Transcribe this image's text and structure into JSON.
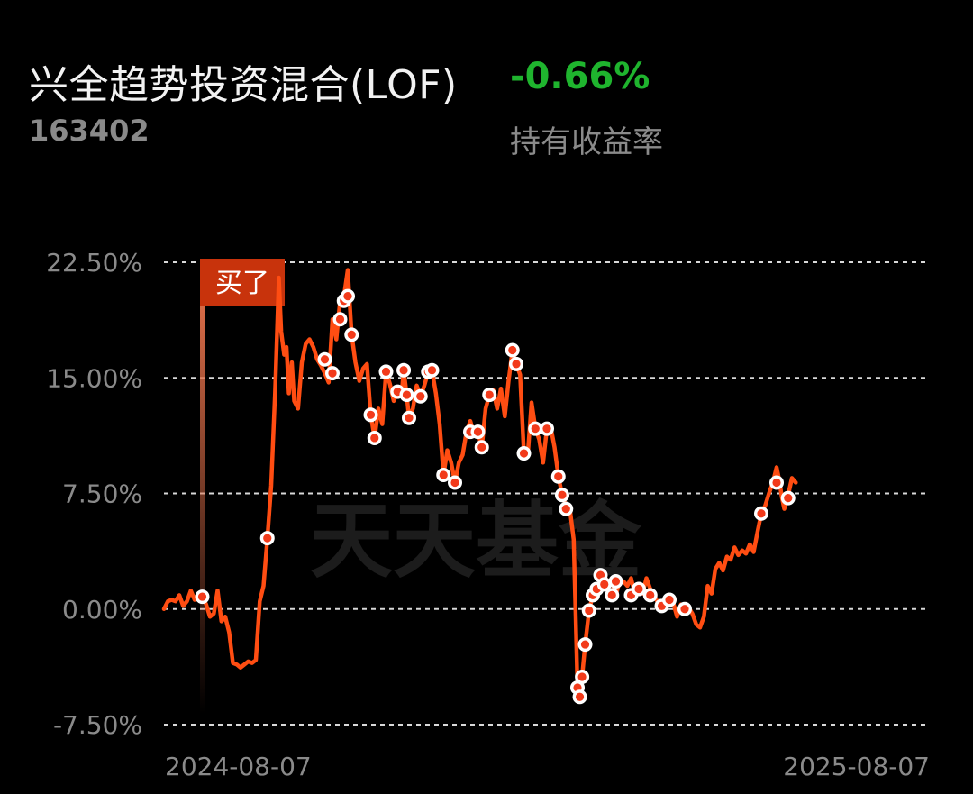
{
  "header": {
    "fund_name": "兴全趋势投资混合(LOF)",
    "fund_code": "163402",
    "return_value": "-0.66%",
    "return_label": "持有收益率"
  },
  "badge": {
    "label": "买了"
  },
  "watermark": "天天基金",
  "colors": {
    "line": "#ff4d12",
    "positive": "#1fb42e",
    "badge": "#c8330c",
    "text_muted": "#8a8a8a"
  },
  "chart_data": {
    "type": "line",
    "ylim": [
      -7.5,
      22.5
    ],
    "yticks": [
      22.5,
      15.0,
      7.5,
      0.0,
      -7.5
    ],
    "ytick_labels": [
      "22.50%",
      "15.00%",
      "7.50%",
      "0.00%",
      "-7.50%"
    ],
    "x_start_label": "2024-08-07",
    "x_end_label": "2025-08-07",
    "x_range": [
      0,
      100
    ],
    "grid": true,
    "buy_marker_x": 5.0,
    "series": [
      {
        "values": [
          [
            0.0,
            0.0
          ],
          [
            0.5,
            0.5
          ],
          [
            1.0,
            0.6
          ],
          [
            1.5,
            0.5
          ],
          [
            2.0,
            0.9
          ],
          [
            2.5,
            0.2
          ],
          [
            3.0,
            0.5
          ],
          [
            3.5,
            1.2
          ],
          [
            4.0,
            0.6
          ],
          [
            4.5,
            1.0
          ],
          [
            5.0,
            0.8
          ],
          [
            5.5,
            0.3
          ],
          [
            6.0,
            -0.5
          ],
          [
            6.5,
            -0.3
          ],
          [
            7.0,
            1.2
          ],
          [
            7.5,
            -0.8
          ],
          [
            8.0,
            -0.5
          ],
          [
            8.5,
            -1.5
          ],
          [
            9.0,
            -3.5
          ],
          [
            9.5,
            -3.6
          ],
          [
            10.0,
            -3.8
          ],
          [
            10.5,
            -3.6
          ],
          [
            11.0,
            -3.4
          ],
          [
            11.5,
            -3.5
          ],
          [
            12.0,
            -3.3
          ],
          [
            12.5,
            0.5
          ],
          [
            13.0,
            1.5
          ],
          [
            13.5,
            4.6
          ],
          [
            14.0,
            8.0
          ],
          [
            14.5,
            14.0
          ],
          [
            15.0,
            21.5
          ],
          [
            15.3,
            18.0
          ],
          [
            15.7,
            16.5
          ],
          [
            16.0,
            17.0
          ],
          [
            16.3,
            14.0
          ],
          [
            16.7,
            16.0
          ],
          [
            17.0,
            13.5
          ],
          [
            17.5,
            13.0
          ],
          [
            18.0,
            16.0
          ],
          [
            18.5,
            17.2
          ],
          [
            19.0,
            17.5
          ],
          [
            19.5,
            17.0
          ],
          [
            20.0,
            16.2
          ],
          [
            20.5,
            15.8
          ],
          [
            21.0,
            15.3
          ],
          [
            21.5,
            14.7
          ],
          [
            22.0,
            18.8
          ],
          [
            22.5,
            17.5
          ],
          [
            23.0,
            20.0
          ],
          [
            23.5,
            20.3
          ],
          [
            24.0,
            22.0
          ],
          [
            24.5,
            17.8
          ],
          [
            25.0,
            16.0
          ],
          [
            25.5,
            14.8
          ],
          [
            26.0,
            15.6
          ],
          [
            26.5,
            15.9
          ],
          [
            27.0,
            12.6
          ],
          [
            27.5,
            11.1
          ],
          [
            28.0,
            13.0
          ],
          [
            28.5,
            12.0
          ],
          [
            29.0,
            15.4
          ],
          [
            29.5,
            14.6
          ],
          [
            30.0,
            13.5
          ],
          [
            30.5,
            14.1
          ],
          [
            31.0,
            13.8
          ],
          [
            31.3,
            15.5
          ],
          [
            31.7,
            13.9
          ],
          [
            32.0,
            12.4
          ],
          [
            32.5,
            13.0
          ],
          [
            33.0,
            14.5
          ],
          [
            33.5,
            13.8
          ],
          [
            34.0,
            14.5
          ],
          [
            34.5,
            15.4
          ],
          [
            35.0,
            15.5
          ],
          [
            35.5,
            14.0
          ],
          [
            36.0,
            12.0
          ],
          [
            36.5,
            8.7
          ],
          [
            37.0,
            10.3
          ],
          [
            37.5,
            9.5
          ],
          [
            38.0,
            8.2
          ],
          [
            38.5,
            9.5
          ],
          [
            39.0,
            10.0
          ],
          [
            39.5,
            11.5
          ],
          [
            40.0,
            12.2
          ],
          [
            40.5,
            11.3
          ],
          [
            41.0,
            11.5
          ],
          [
            41.5,
            10.5
          ],
          [
            42.0,
            13.0
          ],
          [
            42.5,
            13.9
          ],
          [
            43.0,
            14.2
          ],
          [
            43.5,
            13.0
          ],
          [
            44.0,
            14.3
          ],
          [
            44.5,
            12.5
          ],
          [
            45.0,
            14.8
          ],
          [
            45.5,
            16.8
          ],
          [
            46.0,
            15.9
          ],
          [
            46.5,
            15.2
          ],
          [
            47.0,
            10.1
          ],
          [
            47.5,
            10.0
          ],
          [
            48.0,
            13.4
          ],
          [
            48.5,
            11.7
          ],
          [
            49.0,
            11.0
          ],
          [
            49.5,
            9.5
          ],
          [
            50.0,
            11.7
          ],
          [
            50.5,
            11.8
          ],
          [
            51.0,
            10.5
          ],
          [
            51.5,
            8.6
          ],
          [
            52.0,
            7.4
          ],
          [
            52.5,
            6.7
          ],
          [
            53.0,
            6.5
          ],
          [
            53.5,
            4.5
          ],
          [
            54.0,
            -5.1
          ],
          [
            54.3,
            -5.7
          ],
          [
            54.6,
            -4.4
          ],
          [
            55.0,
            -2.3
          ],
          [
            55.5,
            -0.1
          ],
          [
            56.0,
            0.9
          ],
          [
            56.5,
            1.3
          ],
          [
            57.0,
            1.4
          ],
          [
            57.5,
            2.2
          ],
          [
            58.0,
            1.6
          ],
          [
            58.5,
            1.7
          ],
          [
            59.0,
            0.9
          ],
          [
            59.5,
            1.8
          ],
          [
            60.0,
            1.8
          ],
          [
            60.5,
            1.5
          ],
          [
            61.0,
            2.0
          ],
          [
            61.5,
            0.9
          ],
          [
            62.0,
            1.3
          ],
          [
            62.5,
            1.0
          ],
          [
            63.0,
            2.0
          ],
          [
            63.5,
            1.3
          ],
          [
            64.0,
            0.9
          ],
          [
            64.5,
            0.4
          ],
          [
            65.0,
            0.0
          ],
          [
            65.5,
            0.2
          ],
          [
            66.0,
            0.6
          ],
          [
            66.5,
            0.4
          ],
          [
            67.0,
            -0.5
          ],
          [
            67.5,
            0.3
          ],
          [
            68.0,
            0.0
          ],
          [
            68.5,
            0.1
          ],
          [
            69.0,
            -0.3
          ],
          [
            69.5,
            -1.0
          ],
          [
            70.0,
            -1.2
          ],
          [
            70.5,
            -0.5
          ],
          [
            71.0,
            1.5
          ],
          [
            71.5,
            1.0
          ],
          [
            72.0,
            2.6
          ],
          [
            72.5,
            3.0
          ],
          [
            73.0,
            2.5
          ],
          [
            73.5,
            3.4
          ],
          [
            74.0,
            3.2
          ],
          [
            74.5,
            4.0
          ],
          [
            75.0,
            3.5
          ],
          [
            75.5,
            3.8
          ],
          [
            76.0,
            3.6
          ],
          [
            76.5,
            4.2
          ],
          [
            77.0,
            3.7
          ],
          [
            77.5,
            5.0
          ],
          [
            78.0,
            6.2
          ],
          [
            78.5,
            6.7
          ],
          [
            79.0,
            7.5
          ],
          [
            79.5,
            8.2
          ],
          [
            80.0,
            9.2
          ],
          [
            80.3,
            8.5
          ],
          [
            80.7,
            7.2
          ],
          [
            81.0,
            6.5
          ],
          [
            81.5,
            7.4
          ],
          [
            82.0,
            8.5
          ],
          [
            82.5,
            8.2
          ]
        ]
      }
    ],
    "trade_points": [
      [
        5.0,
        0.8
      ],
      [
        13.5,
        4.6
      ],
      [
        21.0,
        16.2
      ],
      [
        22.0,
        15.3
      ],
      [
        23.0,
        18.8
      ],
      [
        23.5,
        20.0
      ],
      [
        24.0,
        20.3
      ],
      [
        24.5,
        17.8
      ],
      [
        27.0,
        12.6
      ],
      [
        27.5,
        11.1
      ],
      [
        29.0,
        15.4
      ],
      [
        30.5,
        14.1
      ],
      [
        31.3,
        15.5
      ],
      [
        31.7,
        13.9
      ],
      [
        32.0,
        12.4
      ],
      [
        33.5,
        13.8
      ],
      [
        34.5,
        15.4
      ],
      [
        35.0,
        15.5
      ],
      [
        36.5,
        8.7
      ],
      [
        38.0,
        8.2
      ],
      [
        40.0,
        11.5
      ],
      [
        41.0,
        11.5
      ],
      [
        41.5,
        10.5
      ],
      [
        42.5,
        13.9
      ],
      [
        45.5,
        16.8
      ],
      [
        46.0,
        15.9
      ],
      [
        47.0,
        10.1
      ],
      [
        48.5,
        11.7
      ],
      [
        50.0,
        11.7
      ],
      [
        51.5,
        8.6
      ],
      [
        52.0,
        7.4
      ],
      [
        52.5,
        6.5
      ],
      [
        54.0,
        -5.1
      ],
      [
        54.3,
        -5.7
      ],
      [
        54.6,
        -4.4
      ],
      [
        55.0,
        -2.3
      ],
      [
        55.5,
        -0.1
      ],
      [
        56.0,
        0.9
      ],
      [
        56.5,
        1.3
      ],
      [
        57.0,
        2.2
      ],
      [
        57.5,
        1.6
      ],
      [
        58.5,
        0.9
      ],
      [
        59.0,
        1.8
      ],
      [
        61.0,
        0.9
      ],
      [
        62.0,
        1.3
      ],
      [
        63.5,
        0.9
      ],
      [
        65.0,
        0.2
      ],
      [
        66.0,
        0.6
      ],
      [
        68.0,
        0.0
      ],
      [
        78.0,
        6.2
      ],
      [
        80.0,
        8.2
      ],
      [
        81.5,
        7.2
      ]
    ]
  }
}
